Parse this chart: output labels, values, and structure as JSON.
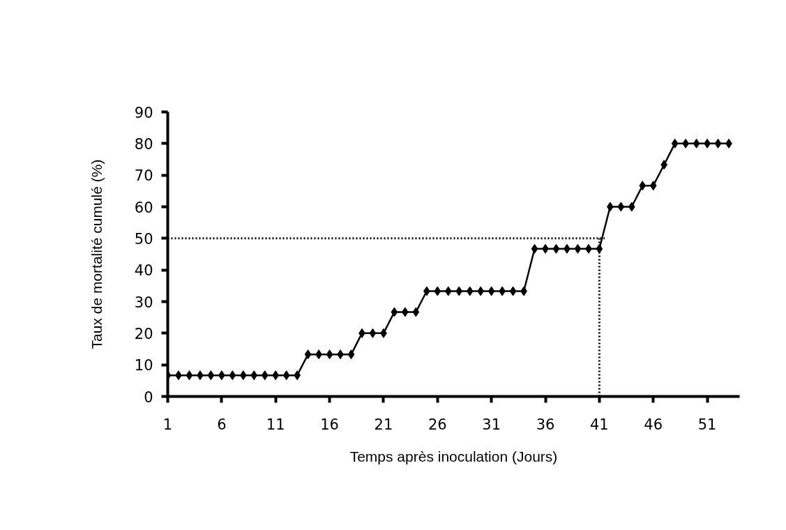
{
  "chart_data": {
    "type": "line",
    "xlabel": "Temps après inoculation (Jours)",
    "ylabel": "Taux de mortalité cumulé (%)",
    "x": [
      1,
      2,
      3,
      4,
      5,
      6,
      7,
      8,
      9,
      10,
      11,
      12,
      13,
      14,
      15,
      16,
      17,
      18,
      19,
      20,
      21,
      22,
      23,
      24,
      25,
      26,
      27,
      28,
      29,
      30,
      31,
      32,
      33,
      34,
      35,
      36,
      37,
      38,
      39,
      40,
      41,
      42,
      43,
      44,
      45,
      46,
      47,
      48,
      49,
      50,
      51,
      52,
      53
    ],
    "series": [
      {
        "color": "#000000",
        "values": [
          6.7,
          6.7,
          6.7,
          6.7,
          6.7,
          6.7,
          6.7,
          6.7,
          6.7,
          6.7,
          6.7,
          6.7,
          6.7,
          13.3,
          13.3,
          13.3,
          13.3,
          13.3,
          20,
          20,
          20,
          26.7,
          26.7,
          26.7,
          33.3,
          33.3,
          33.3,
          33.3,
          33.3,
          33.3,
          33.3,
          33.3,
          33.3,
          33.3,
          46.7,
          46.7,
          46.7,
          46.7,
          46.7,
          46.7,
          46.7,
          60,
          60,
          60,
          66.7,
          66.7,
          73.3,
          80,
          80,
          80,
          80,
          80,
          80
        ]
      }
    ],
    "xlim": [
      1,
      54
    ],
    "xticks": [
      1,
      6,
      11,
      16,
      21,
      26,
      31,
      36,
      41,
      46,
      51
    ],
    "ylim": [
      0,
      90
    ],
    "yticks": [
      0,
      10,
      20,
      30,
      40,
      50,
      60,
      70,
      80,
      90
    ],
    "ref_lines": [
      {
        "axis": "y",
        "value": 50,
        "line_style": "dotted",
        "color": "#000000"
      },
      {
        "axis": "x",
        "value": 41,
        "line_style": "dotted",
        "color": "#000000"
      }
    ],
    "marker": "diamond",
    "line_style": "solid",
    "grid": false
  }
}
